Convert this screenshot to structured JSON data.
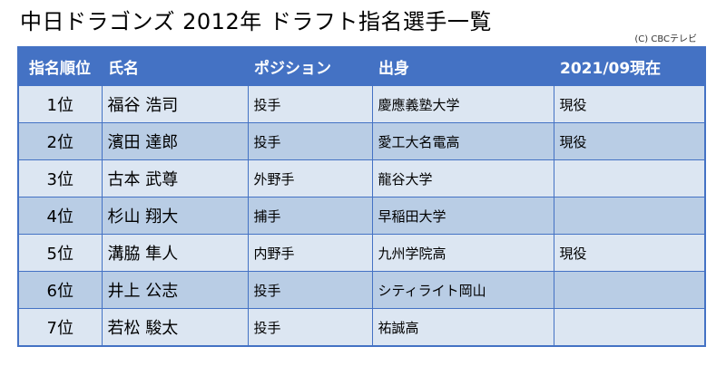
{
  "title": "中日ドラゴンズ 2012年 ドラフト指名選手一覧",
  "credit": "(C) CBCテレビ",
  "table": {
    "headers": [
      "指名順位",
      "氏名",
      "ポジション",
      "出身",
      "2021/09現在"
    ],
    "rows": [
      {
        "rank": "1位",
        "name": "福谷 浩司",
        "position": "投手",
        "origin": "慶應義塾大学",
        "status": "現役"
      },
      {
        "rank": "2位",
        "name": "濱田 達郎",
        "position": "投手",
        "origin": "愛工大名電高",
        "status": "現役"
      },
      {
        "rank": "3位",
        "name": "古本 武尊",
        "position": "外野手",
        "origin": "龍谷大学",
        "status": ""
      },
      {
        "rank": "4位",
        "name": "杉山 翔大",
        "position": "捕手",
        "origin": "早稲田大学",
        "status": ""
      },
      {
        "rank": "5位",
        "name": "溝脇 隼人",
        "position": "内野手",
        "origin": "九州学院高",
        "status": "現役"
      },
      {
        "rank": "6位",
        "name": "井上 公志",
        "position": "投手",
        "origin": "シティライト岡山",
        "status": ""
      },
      {
        "rank": "7位",
        "name": "若松 駿太",
        "position": "投手",
        "origin": "祐誠高",
        "status": ""
      }
    ]
  },
  "colors": {
    "header_bg": "#4472c4",
    "row_light": "#dce6f2",
    "row_dark": "#b9cde5"
  }
}
